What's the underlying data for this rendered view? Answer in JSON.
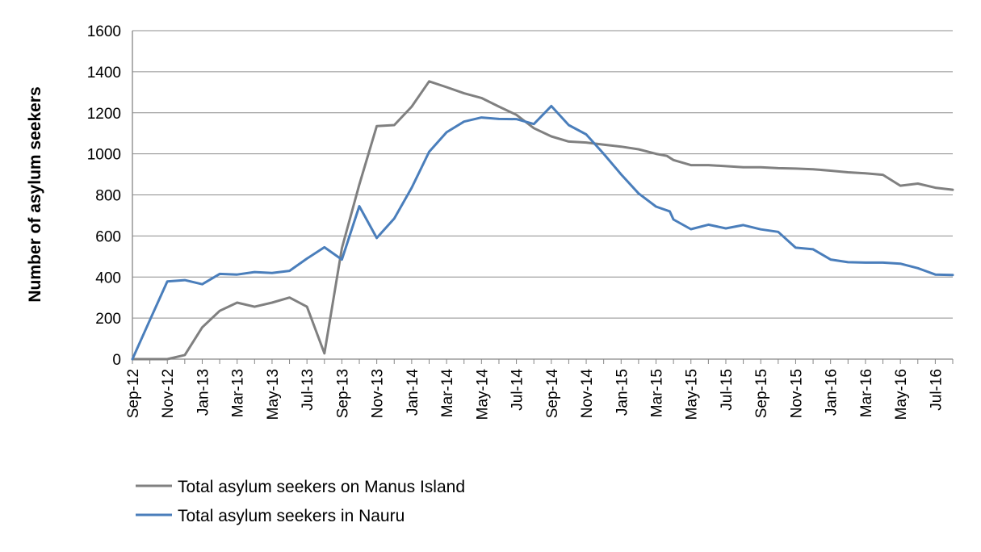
{
  "chart_data": {
    "type": "line",
    "title": "",
    "xlabel": "",
    "ylabel": "Number of asylum seekers",
    "ylim": [
      0,
      1600
    ],
    "yticks": [
      0,
      200,
      400,
      600,
      800,
      1000,
      1200,
      1400,
      1600
    ],
    "grid": "horizontal",
    "legend_position": "bottom-left",
    "x_range": [
      "2012-09",
      "2016-08"
    ],
    "x_tick_labels": [
      "Sep-12",
      "Nov-12",
      "Jan-13",
      "Mar-13",
      "May-13",
      "Jul-13",
      "Sep-13",
      "Nov-13",
      "Jan-14",
      "Mar-14",
      "May-14",
      "Jul-14",
      "Sep-14",
      "Nov-14",
      "Jan-15",
      "Mar-15",
      "May-15",
      "Jul-15",
      "Sep-15",
      "Nov-15",
      "Jan-16",
      "Mar-16",
      "May-16",
      "Jul-16"
    ],
    "series": [
      {
        "name": "Total asylum seekers on Manus Island",
        "color": "#808080",
        "points": [
          [
            "2012-09-01",
            0
          ],
          [
            "2012-10-01",
            0
          ],
          [
            "2012-11-01",
            0
          ],
          [
            "2012-12-01",
            20
          ],
          [
            "2013-01-01",
            155
          ],
          [
            "2013-02-01",
            235
          ],
          [
            "2013-03-01",
            275
          ],
          [
            "2013-04-01",
            255
          ],
          [
            "2013-05-01",
            275
          ],
          [
            "2013-06-01",
            300
          ],
          [
            "2013-07-01",
            255
          ],
          [
            "2013-08-01",
            28
          ],
          [
            "2013-09-01",
            540
          ],
          [
            "2013-10-01",
            850
          ],
          [
            "2013-11-01",
            1135
          ],
          [
            "2013-12-01",
            1140
          ],
          [
            "2014-01-01",
            1230
          ],
          [
            "2014-02-01",
            1353
          ],
          [
            "2014-03-01",
            1325
          ],
          [
            "2014-04-01",
            1295
          ],
          [
            "2014-05-01",
            1272
          ],
          [
            "2014-06-01",
            1230
          ],
          [
            "2014-07-01",
            1190
          ],
          [
            "2014-08-01",
            1125
          ],
          [
            "2014-09-01",
            1085
          ],
          [
            "2014-10-01",
            1060
          ],
          [
            "2014-11-01",
            1055
          ],
          [
            "2014-12-01",
            1045
          ],
          [
            "2015-01-01",
            1035
          ],
          [
            "2015-02-01",
            1022
          ],
          [
            "2015-03-01",
            1000
          ],
          [
            "2015-03-20",
            990
          ],
          [
            "2015-04-01",
            970
          ],
          [
            "2015-05-01",
            945
          ],
          [
            "2015-06-01",
            945
          ],
          [
            "2015-07-01",
            940
          ],
          [
            "2015-08-01",
            935
          ],
          [
            "2015-09-01",
            935
          ],
          [
            "2015-10-01",
            930
          ],
          [
            "2015-11-01",
            928
          ],
          [
            "2015-12-01",
            925
          ],
          [
            "2016-01-01",
            918
          ],
          [
            "2016-02-01",
            910
          ],
          [
            "2016-03-01",
            905
          ],
          [
            "2016-04-01",
            898
          ],
          [
            "2016-05-01",
            845
          ],
          [
            "2016-06-01",
            855
          ],
          [
            "2016-07-01",
            835
          ],
          [
            "2016-08-01",
            825
          ]
        ]
      },
      {
        "name": "Total asylum seekers in Nauru",
        "color": "#4a7ebb",
        "points": [
          [
            "2012-09-01",
            0
          ],
          [
            "2012-10-01",
            190
          ],
          [
            "2012-11-01",
            378
          ],
          [
            "2012-12-01",
            385
          ],
          [
            "2013-01-01",
            365
          ],
          [
            "2013-02-01",
            415
          ],
          [
            "2013-03-01",
            412
          ],
          [
            "2013-04-01",
            424
          ],
          [
            "2013-05-01",
            420
          ],
          [
            "2013-06-01",
            430
          ],
          [
            "2013-07-01",
            490
          ],
          [
            "2013-08-01",
            545
          ],
          [
            "2013-09-01",
            485
          ],
          [
            "2013-10-01",
            745
          ],
          [
            "2013-11-01",
            590
          ],
          [
            "2013-12-01",
            685
          ],
          [
            "2014-01-01",
            835
          ],
          [
            "2014-02-01",
            1010
          ],
          [
            "2014-03-01",
            1105
          ],
          [
            "2014-04-01",
            1157
          ],
          [
            "2014-05-01",
            1177
          ],
          [
            "2014-06-01",
            1170
          ],
          [
            "2014-07-01",
            1169
          ],
          [
            "2014-08-01",
            1145
          ],
          [
            "2014-09-01",
            1233
          ],
          [
            "2014-10-01",
            1140
          ],
          [
            "2014-11-01",
            1095
          ],
          [
            "2014-12-01",
            1000
          ],
          [
            "2015-01-01",
            900
          ],
          [
            "2015-02-01",
            807
          ],
          [
            "2015-03-01",
            743
          ],
          [
            "2015-03-25",
            720
          ],
          [
            "2015-04-01",
            680
          ],
          [
            "2015-05-01",
            633
          ],
          [
            "2015-06-01",
            655
          ],
          [
            "2015-07-01",
            637
          ],
          [
            "2015-08-01",
            653
          ],
          [
            "2015-09-01",
            632
          ],
          [
            "2015-10-01",
            620
          ],
          [
            "2015-11-01",
            543
          ],
          [
            "2015-12-01",
            535
          ],
          [
            "2016-01-01",
            485
          ],
          [
            "2016-02-01",
            472
          ],
          [
            "2016-03-01",
            470
          ],
          [
            "2016-04-01",
            470
          ],
          [
            "2016-05-01",
            465
          ],
          [
            "2016-06-01",
            443
          ],
          [
            "2016-07-01",
            412
          ],
          [
            "2016-08-01",
            410
          ]
        ]
      }
    ]
  }
}
